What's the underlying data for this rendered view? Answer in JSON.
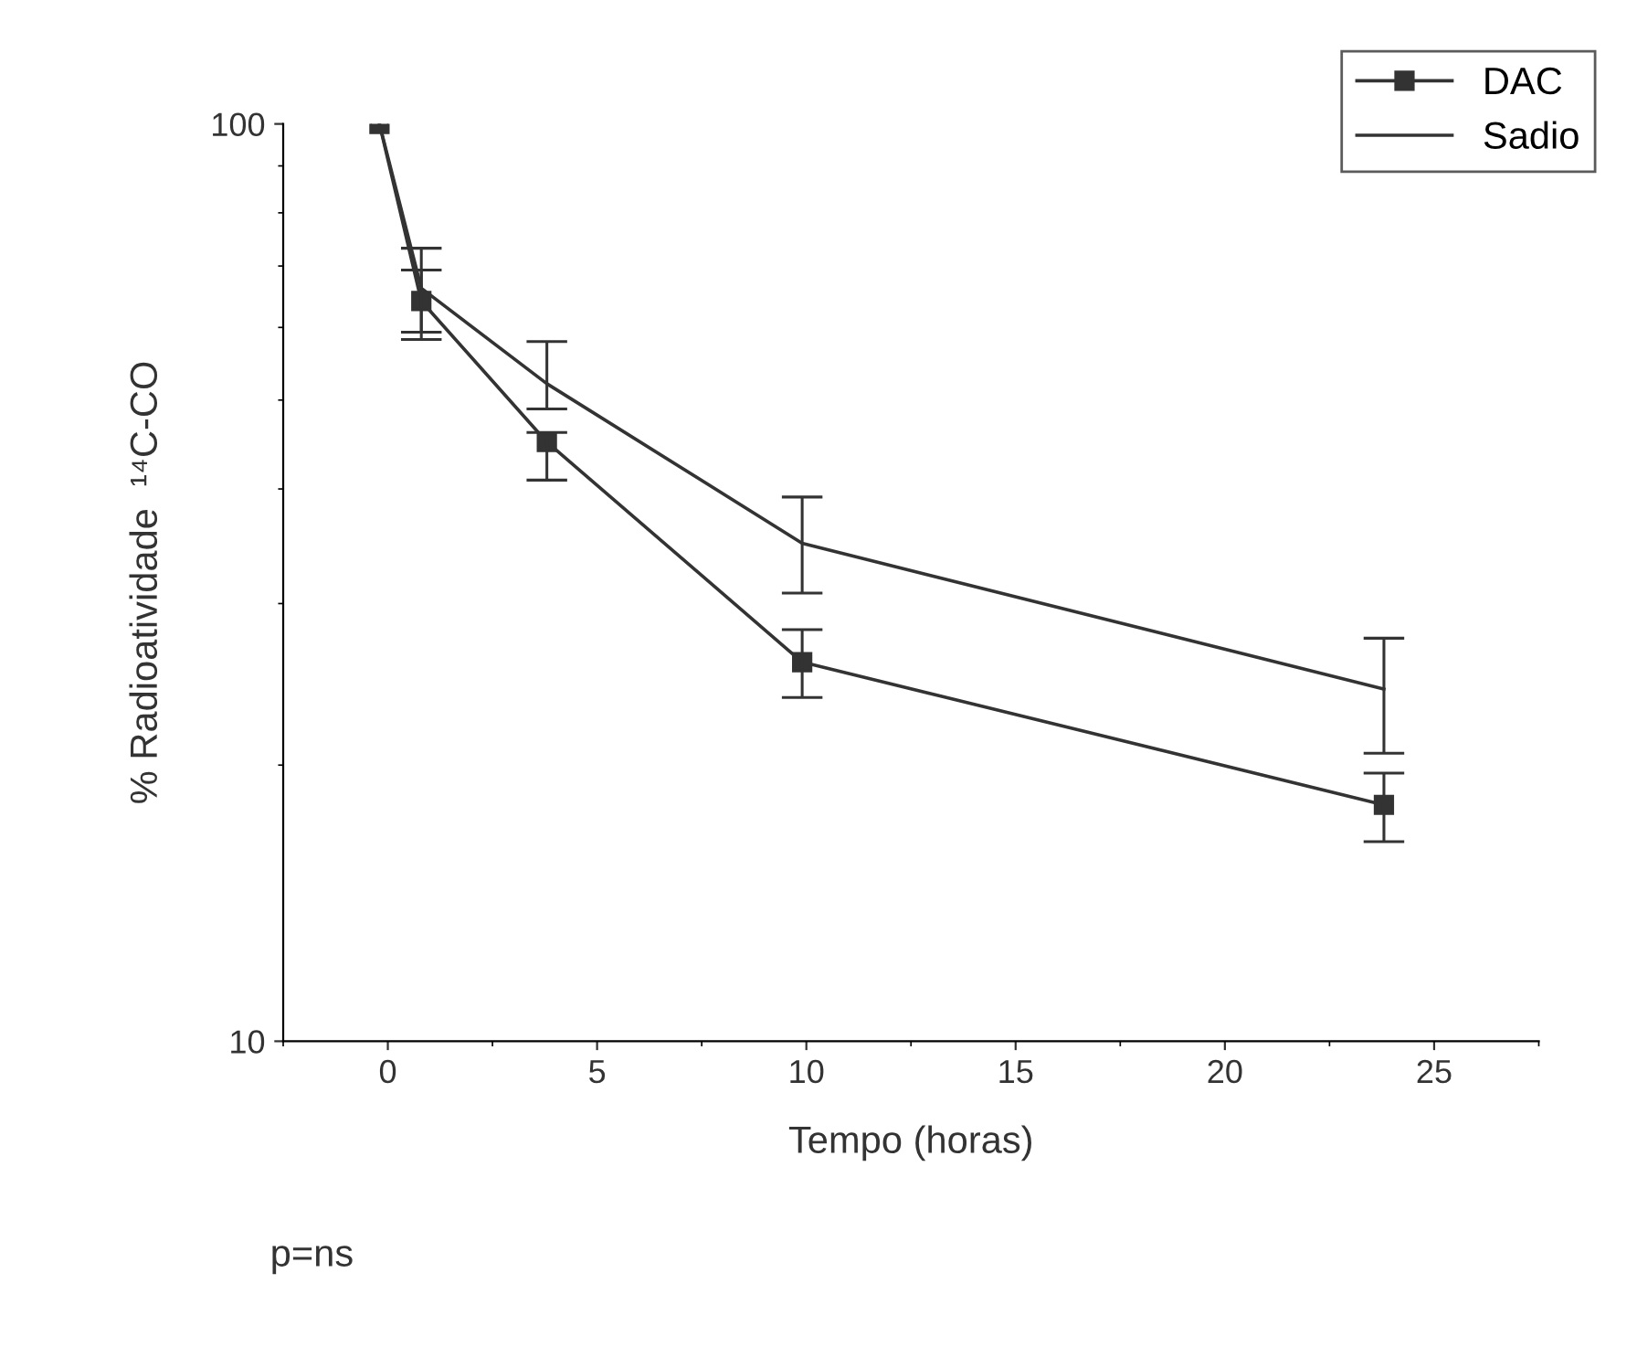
{
  "chart_data": {
    "type": "line",
    "xlabel": "Tempo (horas)",
    "ylabel": "% Radioatividade  ¹⁴C-CO",
    "x": [
      -0.2,
      0.8,
      3.8,
      9.9,
      23.8
    ],
    "series": [
      {
        "name": "DAC",
        "color": "#333333",
        "marker": "square",
        "values": [
          100,
          64.1,
          45.0,
          25.9,
          18.1
        ],
        "errors": [
          null,
          [
            59.3,
            69.3
          ],
          [
            40.9,
            46.1
          ],
          [
            23.7,
            28.1
          ],
          [
            16.5,
            19.6
          ]
        ]
      },
      {
        "name": "Sadio",
        "color": "#333333",
        "marker": "none",
        "values": [
          100,
          66.2,
          52.1,
          34.9,
          24.2
        ],
        "errors": [
          null,
          [
            58.2,
            73.2
          ],
          [
            48.9,
            57.9
          ],
          [
            30.8,
            39.2
          ],
          [
            20.6,
            27.5
          ]
        ]
      }
    ],
    "log": "y",
    "xlim": [
      -2.5,
      27.5
    ],
    "ylim": [
      10,
      100
    ],
    "xticks": [
      0,
      5,
      10,
      15,
      20,
      25
    ],
    "yticks": [
      10,
      100
    ],
    "legend": "top right",
    "grid": false,
    "line_style": "solid",
    "annotations": [
      "p=ns"
    ]
  }
}
